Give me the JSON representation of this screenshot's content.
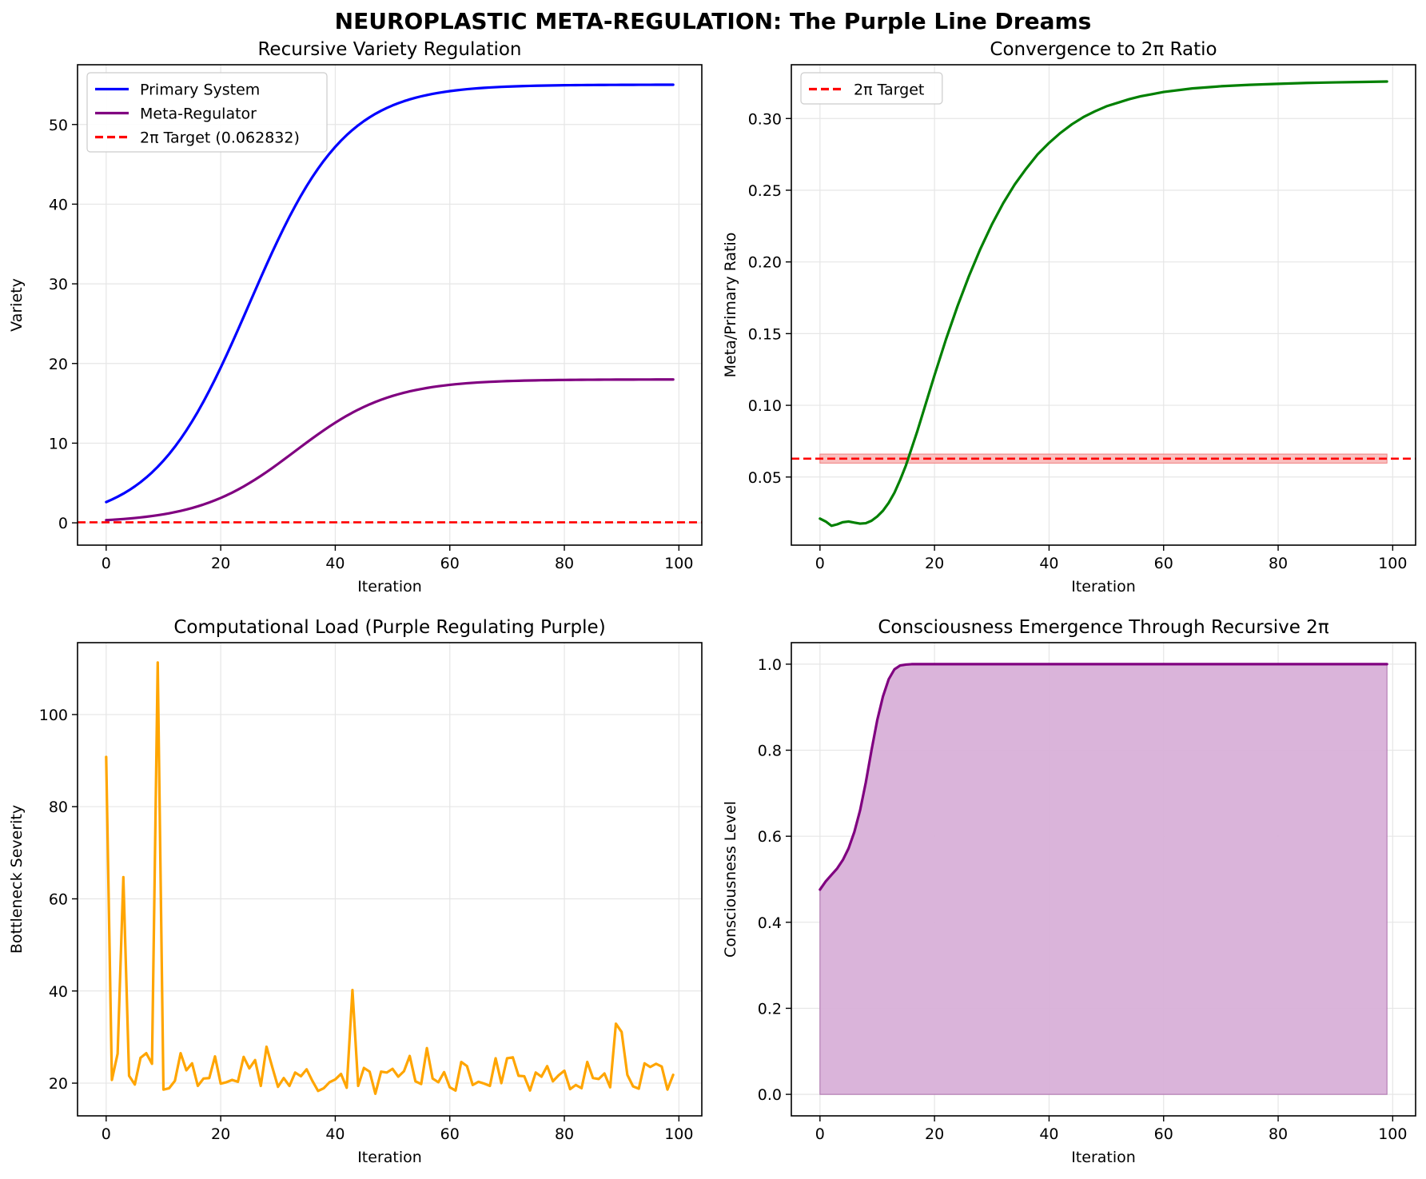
{
  "figure": {
    "title": "NEUROPLASTIC META-REGULATION: The Purple Line Dreams"
  },
  "colors": {
    "primary": "#0000ff",
    "meta": "#800080",
    "target": "#ff0000",
    "ratio": "#008000",
    "load": "#ffa500",
    "consciousness": "#800080",
    "consciousness_fill": "#d8b0d8",
    "target_band": "#f8b4b4"
  },
  "chart_data": [
    {
      "id": "variety",
      "type": "line",
      "title": "Recursive Variety Regulation",
      "xlabel": "Iteration",
      "ylabel": "Variety",
      "xlim": [
        -5,
        104
      ],
      "ylim": [
        -2.8,
        57.5
      ],
      "xticks": [
        0,
        20,
        40,
        60,
        80,
        100
      ],
      "yticks": [
        0,
        10,
        20,
        30,
        40,
        50
      ],
      "grid": true,
      "legend_position": "top-left",
      "series": [
        {
          "name": "Primary System",
          "color_key": "primary",
          "style": "solid",
          "model": "logistic",
          "min": 0,
          "max": 55,
          "mid": 25,
          "k": 0.12,
          "n": 100
        },
        {
          "name": "Meta-Regulator",
          "color_key": "meta",
          "style": "solid",
          "model": "logistic",
          "min": 0,
          "max": 18,
          "mid": 33,
          "k": 0.12,
          "n": 100
        },
        {
          "name": "2π Target (0.062832)",
          "color_key": "target",
          "style": "dashed",
          "model": "hline",
          "y": 0.062832,
          "span": "full"
        }
      ]
    },
    {
      "id": "ratio",
      "type": "line",
      "title": "Convergence to 2π Ratio",
      "xlabel": "Iteration",
      "ylabel": "Meta/Primary Ratio",
      "xlim": [
        -5,
        104
      ],
      "ylim": [
        0.0025,
        0.3375
      ],
      "xticks": [
        0,
        20,
        40,
        60,
        80,
        100
      ],
      "yticks": [
        0.05,
        0.1,
        0.15,
        0.2,
        0.25,
        0.3
      ],
      "ytick_labels": [
        "0.05",
        "0.10",
        "0.15",
        "0.20",
        "0.25",
        "0.30"
      ],
      "grid": true,
      "legend_position": "top-left",
      "band": {
        "x": [
          0,
          99
        ],
        "y": [
          0.0597,
          0.066
        ],
        "color_key": "target_band"
      },
      "series": [
        {
          "name": "ratio",
          "color_key": "ratio",
          "style": "solid",
          "legend": false,
          "x": [
            0,
            1,
            2,
            3,
            4,
            5,
            6,
            7,
            8,
            9,
            10,
            11,
            12,
            13,
            14,
            15,
            16,
            17,
            18,
            19,
            20,
            22,
            24,
            26,
            28,
            30,
            32,
            34,
            36,
            38,
            40,
            42,
            44,
            46,
            48,
            50,
            52,
            54,
            56,
            58,
            60,
            65,
            70,
            75,
            80,
            85,
            90,
            95,
            99
          ],
          "values": [
            0.021,
            0.019,
            0.016,
            0.017,
            0.0185,
            0.019,
            0.0182,
            0.0175,
            0.0178,
            0.0195,
            0.0225,
            0.0265,
            0.032,
            0.039,
            0.048,
            0.058,
            0.07,
            0.082,
            0.095,
            0.108,
            0.121,
            0.146,
            0.169,
            0.19,
            0.209,
            0.226,
            0.241,
            0.254,
            0.265,
            0.275,
            0.283,
            0.29,
            0.296,
            0.301,
            0.305,
            0.3085,
            0.311,
            0.3135,
            0.3155,
            0.317,
            0.3185,
            0.321,
            0.3225,
            0.3235,
            0.3242,
            0.3248,
            0.3252,
            0.3255,
            0.3258
          ]
        },
        {
          "name": "2π Target",
          "color_key": "target",
          "style": "dashed",
          "model": "hline",
          "y": 0.062832,
          "span": "full"
        }
      ]
    },
    {
      "id": "load",
      "type": "line",
      "title": "Computational Load (Purple Regulating Purple)",
      "xlabel": "Iteration",
      "ylabel": "Bottleneck Severity",
      "xlim": [
        -5,
        104
      ],
      "ylim": [
        12.9,
        115.6
      ],
      "xticks": [
        0,
        20,
        40,
        60,
        80,
        100
      ],
      "yticks": [
        20,
        40,
        60,
        80,
        100
      ],
      "grid": true,
      "series": [
        {
          "name": "Bottleneck Severity",
          "color_key": "load",
          "style": "solid",
          "values": [
            90.8,
            20.7,
            26.4,
            64.7,
            21.6,
            19.7,
            25.5,
            26.5,
            24.2,
            111.3,
            18.6,
            18.9,
            20.5,
            26.5,
            22.8,
            24.3,
            19.4,
            21.0,
            21.1,
            25.8,
            19.9,
            20.2,
            20.7,
            20.3,
            25.7,
            23.2,
            25.0,
            19.4,
            27.9,
            23.5,
            19.2,
            21.1,
            19.4,
            22.3,
            21.5,
            23.0,
            20.5,
            18.3,
            18.9,
            20.2,
            20.8,
            22.0,
            19.0,
            40.2,
            19.4,
            23.3,
            22.5,
            17.7,
            22.5,
            22.3,
            23.1,
            21.4,
            22.6,
            25.9,
            20.4,
            19.8,
            27.6,
            21.0,
            20.2,
            22.4,
            19.1,
            18.4,
            24.6,
            23.7,
            19.6,
            20.3,
            19.9,
            19.4,
            25.4,
            20.0,
            25.4,
            25.6,
            21.6,
            21.5,
            18.4,
            22.3,
            21.4,
            23.7,
            20.4,
            21.7,
            22.7,
            18.7,
            19.6,
            18.9,
            24.6,
            21.1,
            20.9,
            22.1,
            19.1,
            32.9,
            31.1,
            21.8,
            19.3,
            18.8,
            24.3,
            23.5,
            24.2,
            23.6,
            18.6,
            21.8
          ]
        }
      ]
    },
    {
      "id": "consciousness",
      "type": "area",
      "title": "Consciousness Emergence Through Recursive 2π",
      "xlabel": "Iteration",
      "ylabel": "Consciousness Level",
      "xlim": [
        -5,
        104
      ],
      "ylim": [
        -0.05,
        1.05
      ],
      "xticks": [
        0,
        20,
        40,
        60,
        80,
        100
      ],
      "yticks": [
        0.0,
        0.2,
        0.4,
        0.6,
        0.8,
        1.0
      ],
      "ytick_labels": [
        "0.0",
        "0.2",
        "0.4",
        "0.6",
        "0.8",
        "1.0"
      ],
      "grid": true,
      "series": [
        {
          "name": "Consciousness Level",
          "color_key": "consciousness",
          "fill_key": "consciousness_fill",
          "style": "solid",
          "x": [
            0,
            1,
            2,
            3,
            4,
            5,
            6,
            7,
            8,
            9,
            10,
            11,
            12,
            13,
            14,
            15,
            16,
            18,
            20,
            99
          ],
          "values": [
            0.476,
            0.495,
            0.51,
            0.525,
            0.545,
            0.572,
            0.61,
            0.66,
            0.725,
            0.8,
            0.87,
            0.925,
            0.965,
            0.988,
            0.997,
            0.999,
            1.0,
            1.0,
            1.0,
            1.0
          ]
        }
      ]
    }
  ]
}
